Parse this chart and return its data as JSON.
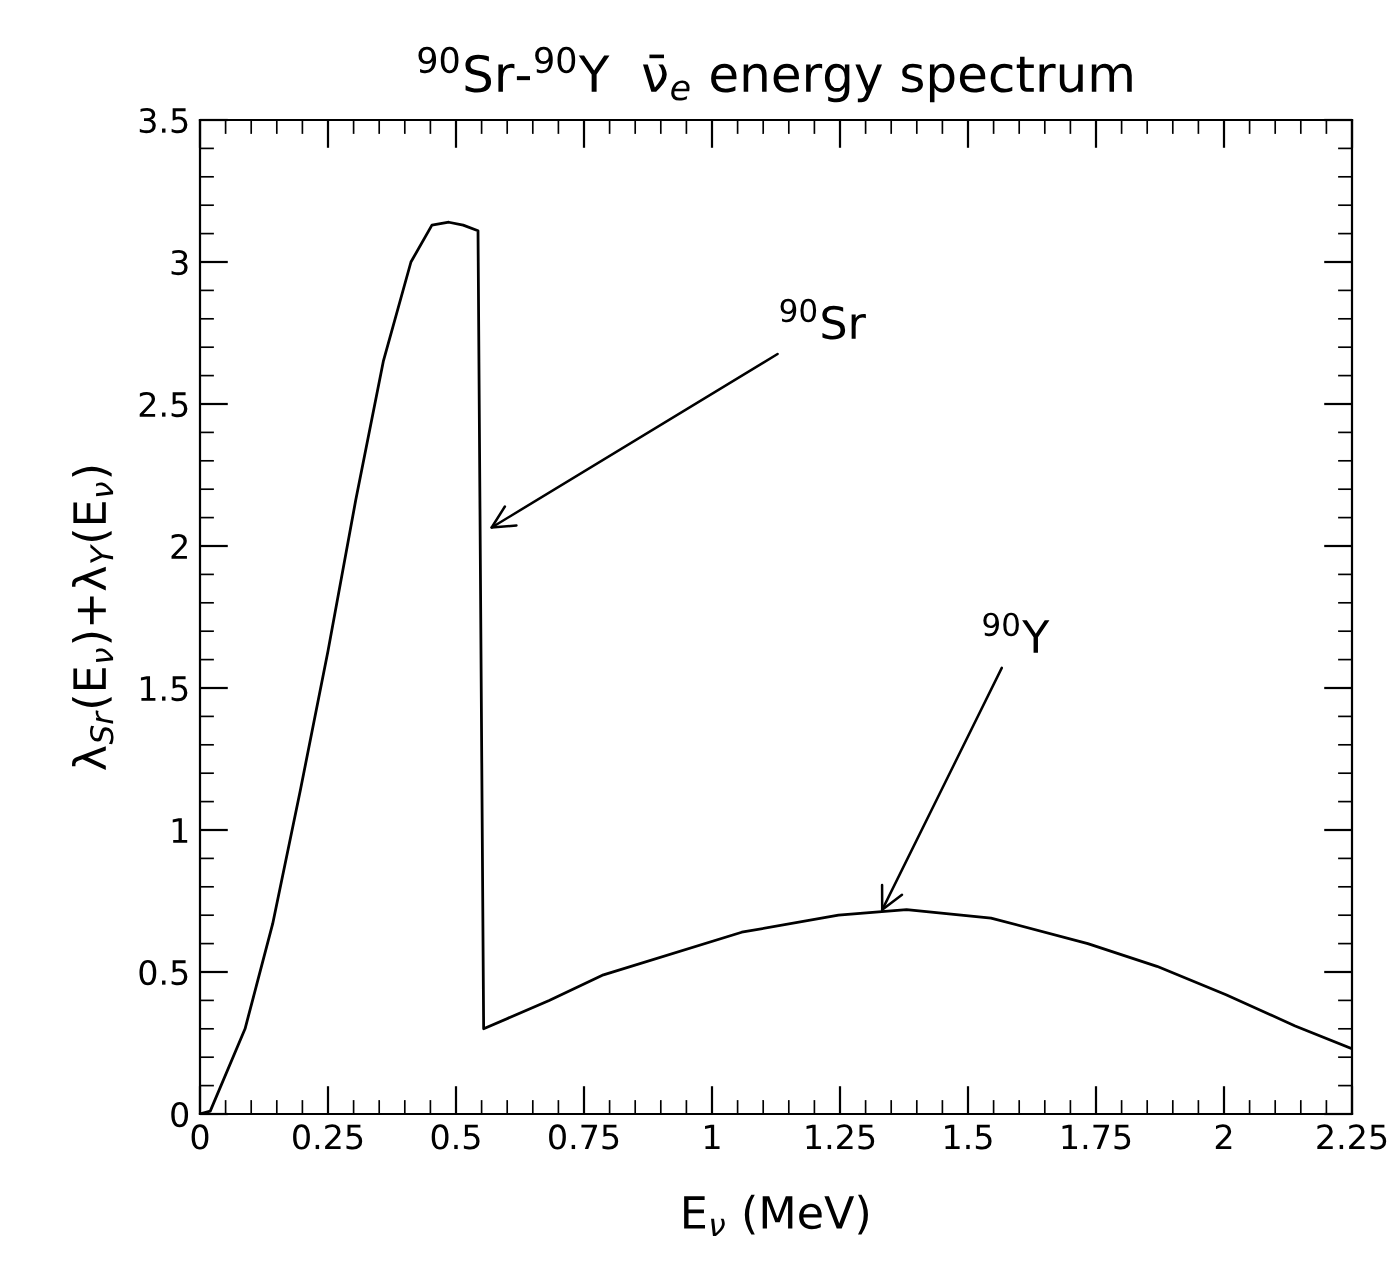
{
  "chart_data": {
    "type": "line",
    "title": "$^{90}$Sr-$^{90}$Y  ν̄$_{e}$ energy spectrum",
    "xlabel": "E$_{ν}$ (MeV)",
    "ylabel": "λ$_{Sr}$(E$_{ν}$)+λ$_{Y}$(E$_{ν}$)",
    "series": [
      {
        "color": "#000000",
        "x": [
          0,
          0.02,
          0.088,
          0.142,
          0.196,
          0.25,
          0.304,
          0.358,
          0.412,
          0.453,
          0.486,
          0.514,
          0.543,
          0.554,
          0.682,
          0.788,
          1.058,
          1.247,
          1.38,
          1.545,
          1.734,
          1.869,
          2.004,
          2.139,
          2.25
        ],
        "values": [
          0,
          0.01,
          0.3,
          0.67,
          1.14,
          1.63,
          2.16,
          2.65,
          3.0,
          3.13,
          3.14,
          3.13,
          3.11,
          0.3,
          0.4,
          0.49,
          0.64,
          0.7,
          0.72,
          0.69,
          0.6,
          0.52,
          0.42,
          0.31,
          0.23
        ]
      }
    ],
    "annotations": [
      {
        "text": "$^{90}$Sr",
        "x": 0.565,
        "y": 2.06
      },
      {
        "text": "$^{90}$Y",
        "x": 1.33,
        "y": 0.71
      }
    ],
    "xlim": [
      0,
      2.25
    ],
    "ylim": [
      0,
      3.5
    ],
    "xticks": [
      0,
      0.25,
      0.5,
      0.75,
      1,
      1.25,
      1.5,
      1.75,
      2,
      2.25
    ],
    "yticks": [
      0,
      0.5,
      1,
      1.5,
      2,
      2.5,
      3,
      3.5
    ],
    "grid": false,
    "marker": "none",
    "line_style": "solid"
  }
}
